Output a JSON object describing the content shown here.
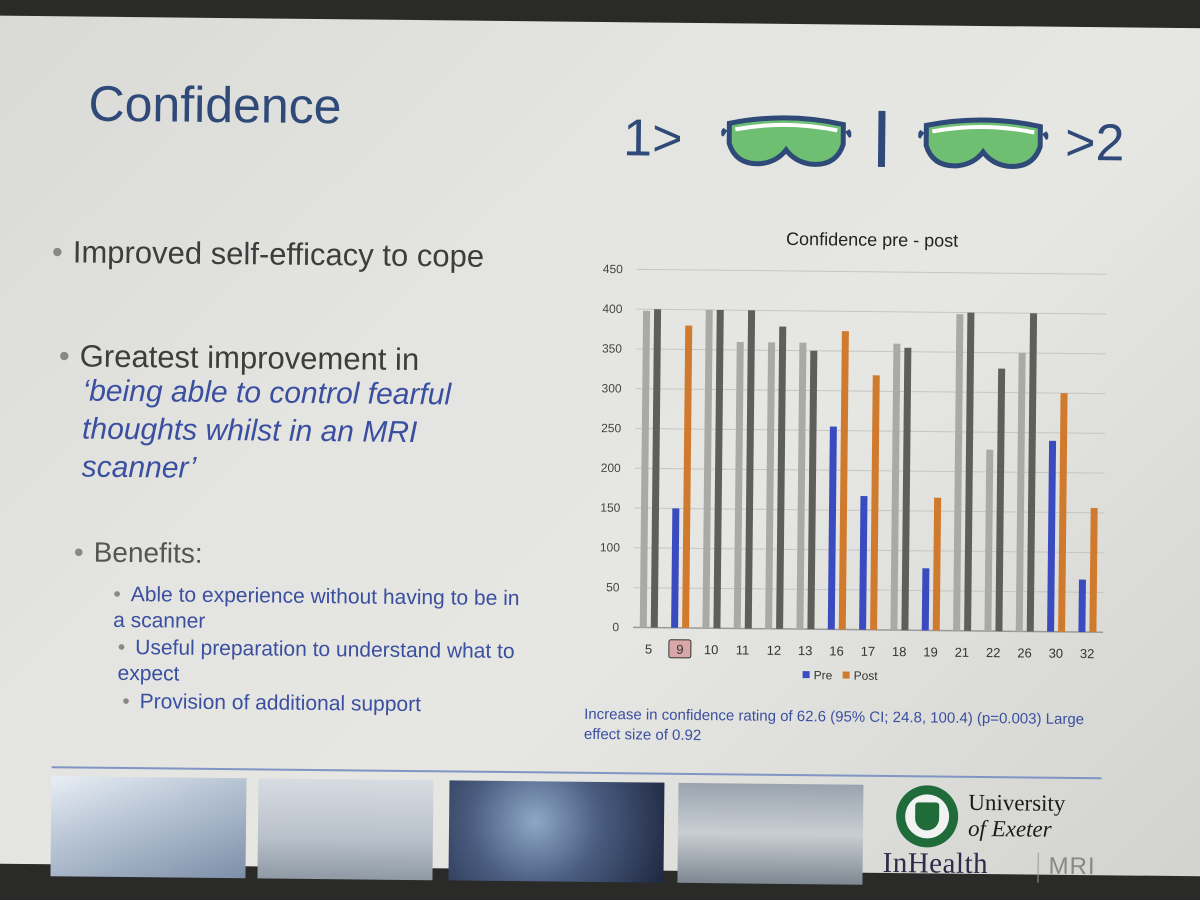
{
  "slide": {
    "title": "Confidence",
    "vr_left": "1>",
    "vr_right": ">2",
    "bullets": {
      "b1": "Improved self-efficacy to cope",
      "b2": "Greatest improvement in",
      "quote": "‘being able to control fearful thoughts whilst in an MRI scanner’",
      "b3": "Benefits:",
      "sub1": "Able to experience without having to be in a scanner",
      "sub2": "Useful preparation to understand what to expect",
      "sub3": "Provision of additional support"
    },
    "note": "Increase in confidence rating of 62.6 (95% CI; 24.8, 100.4) (p=0.003) Large effect size of 0.92",
    "logos": {
      "uoe_line1": "University",
      "uoe_line2": "of Exeter",
      "inhealth": "InHealth",
      "mri": "MRI"
    }
  },
  "chart_data": {
    "type": "bar",
    "title": "Confidence pre - post",
    "categories": [
      "5",
      "9",
      "10",
      "11",
      "12",
      "13",
      "16",
      "17",
      "18",
      "19",
      "21",
      "22",
      "26",
      "30",
      "32"
    ],
    "highlighted_category": "9",
    "series": [
      {
        "name": "Pre",
        "color": "#3a4bbf",
        "muted_color": "#a9aaa8",
        "values": [
          398,
          150,
          400,
          360,
          360,
          360,
          255,
          168,
          360,
          78,
          398,
          228,
          350,
          240,
          66
        ]
      },
      {
        "name": "Post",
        "color": "#d07a2e",
        "muted_color": "#5c5f5c",
        "values": [
          400,
          380,
          400,
          400,
          380,
          350,
          375,
          320,
          355,
          167,
          400,
          330,
          400,
          300,
          156
        ]
      }
    ],
    "muted_categories": [
      "5",
      "10",
      "11",
      "12",
      "13",
      "18",
      "21",
      "22",
      "26"
    ],
    "ylim": [
      0,
      450
    ],
    "yticks": [
      0,
      50,
      100,
      150,
      200,
      250,
      300,
      350,
      400,
      450
    ],
    "grid": true,
    "legend": "bottom"
  }
}
